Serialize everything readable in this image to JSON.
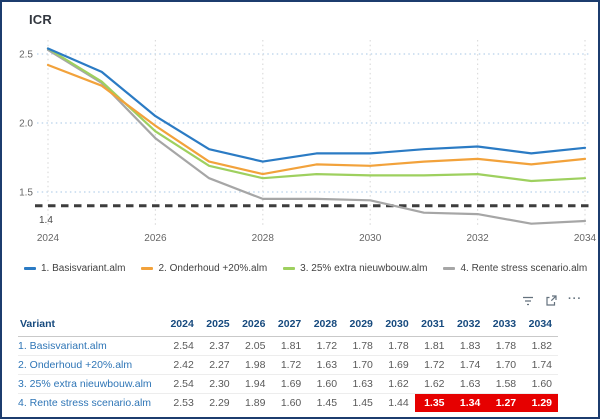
{
  "title": "ICR",
  "chart_data": {
    "type": "line",
    "x": [
      2024,
      2025,
      2026,
      2027,
      2028,
      2029,
      2030,
      2031,
      2032,
      2033,
      2034
    ],
    "series": [
      {
        "name": "1. Basisvariant.alm",
        "color": "#2b7bc4",
        "values": [
          2.54,
          2.37,
          2.05,
          1.81,
          1.72,
          1.78,
          1.78,
          1.81,
          1.83,
          1.78,
          1.82
        ]
      },
      {
        "name": "2. Onderhoud +20%.alm",
        "color": "#f2a23b",
        "values": [
          2.42,
          2.27,
          1.98,
          1.72,
          1.63,
          1.7,
          1.69,
          1.72,
          1.74,
          1.7,
          1.74
        ]
      },
      {
        "name": "3. 25% extra nieuwbouw.alm",
        "color": "#9ed05f",
        "values": [
          2.54,
          2.3,
          1.94,
          1.69,
          1.6,
          1.63,
          1.62,
          1.62,
          1.63,
          1.58,
          1.6
        ]
      },
      {
        "name": "4. Rente stress scenario.alm",
        "color": "#a6a6a6",
        "values": [
          2.53,
          2.29,
          1.89,
          1.6,
          1.45,
          1.45,
          1.44,
          1.35,
          1.34,
          1.27,
          1.29
        ]
      }
    ],
    "x_ticks": [
      2024,
      2026,
      2028,
      2030,
      2032,
      2034
    ],
    "y_ticks": [
      "2.5",
      "2.0",
      "1.5"
    ],
    "ref_line": {
      "value": 1.4,
      "label": "1.4"
    },
    "ylim": [
      1.2,
      2.6
    ],
    "grid": true,
    "legend_position": "bottom",
    "title": "ICR",
    "xlabel": "",
    "ylabel": ""
  },
  "table": {
    "label_header": "Variant",
    "year_headers": [
      "2024",
      "2025",
      "2026",
      "2027",
      "2028",
      "2029",
      "2030",
      "2031",
      "2032",
      "2033",
      "2034"
    ],
    "rows": [
      {
        "label": "1. Basisvariant.alm",
        "values": [
          "2.54",
          "2.37",
          "2.05",
          "1.81",
          "1.72",
          "1.78",
          "1.78",
          "1.81",
          "1.83",
          "1.78",
          "1.82"
        ],
        "highlight_from": null
      },
      {
        "label": "2. Onderhoud +20%.alm",
        "values": [
          "2.42",
          "2.27",
          "1.98",
          "1.72",
          "1.63",
          "1.70",
          "1.69",
          "1.72",
          "1.74",
          "1.70",
          "1.74"
        ],
        "highlight_from": null
      },
      {
        "label": "3. 25% extra nieuwbouw.alm",
        "values": [
          "2.54",
          "2.30",
          "1.94",
          "1.69",
          "1.60",
          "1.63",
          "1.62",
          "1.62",
          "1.63",
          "1.58",
          "1.60"
        ],
        "highlight_from": null
      },
      {
        "label": "4. Rente stress scenario.alm",
        "values": [
          "2.53",
          "2.29",
          "1.89",
          "1.60",
          "1.45",
          "1.45",
          "1.44",
          "1.35",
          "1.34",
          "1.27",
          "1.29"
        ],
        "highlight_from": 7
      }
    ],
    "highlight_color": "#e60000"
  },
  "visual_header": {
    "more_options_glyph": "···"
  },
  "palette": {
    "frame_border": "#1c3c6e",
    "table_header_blue": "#174a7e",
    "row_label_blue": "#2e75b6",
    "value_gray": "#595959",
    "highlight_red": "#e60000",
    "grid_blue": "#c3d9ee",
    "ref_line_dark": "#3d3d3d"
  }
}
